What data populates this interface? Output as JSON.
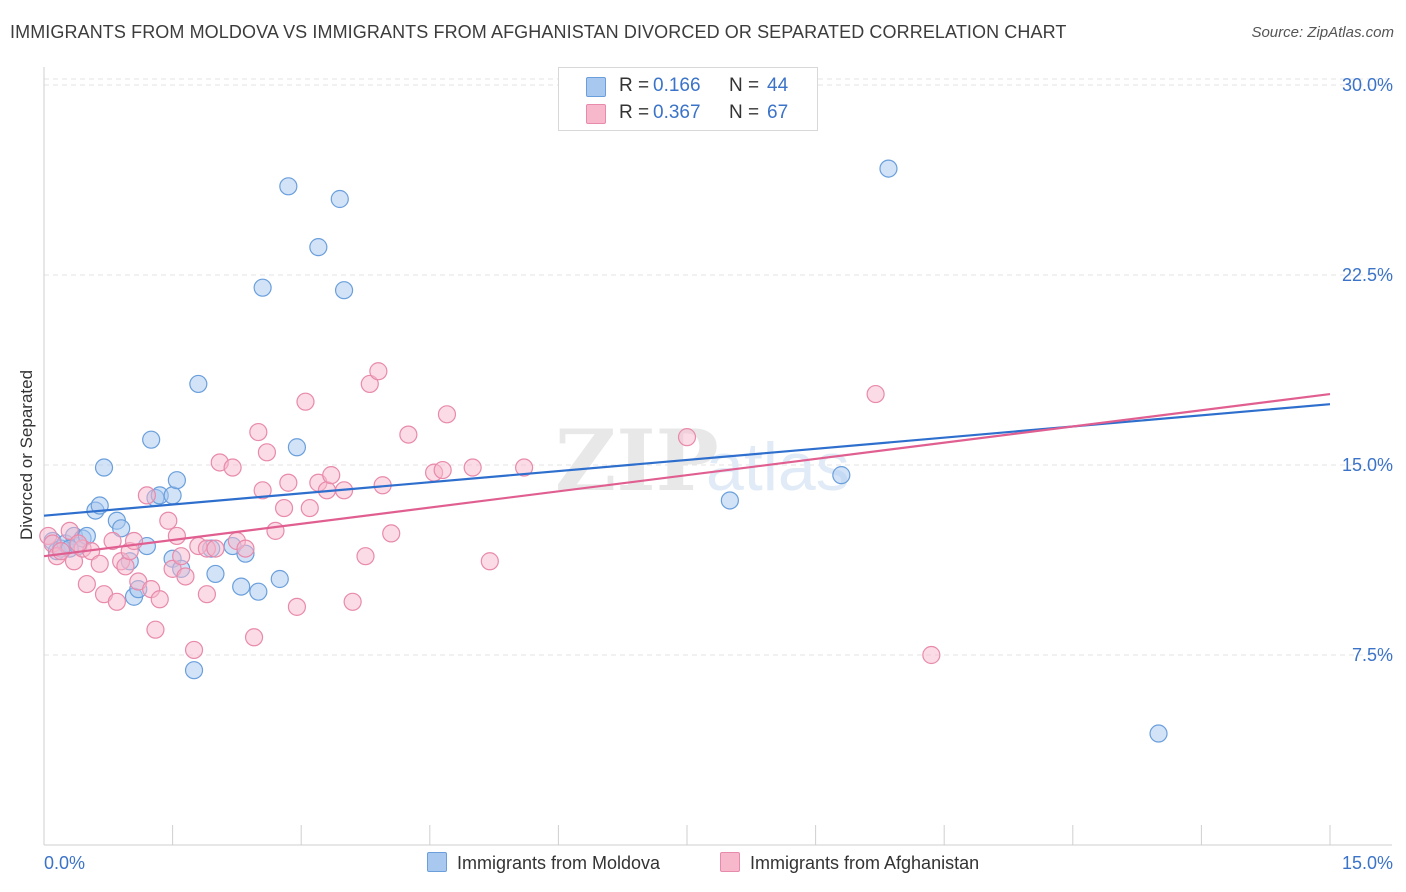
{
  "title": "IMMIGRANTS FROM MOLDOVA VS IMMIGRANTS FROM AFGHANISTAN DIVORCED OR SEPARATED CORRELATION CHART",
  "source": "Source: ZipAtlas.com",
  "watermark": {
    "part1": "ZIP",
    "part2": "atlas"
  },
  "stats": [
    {
      "r_label": "R =",
      "r_value": "0.166",
      "n_label": "N =",
      "n_value": "44"
    },
    {
      "r_label": "R =",
      "r_value": "0.367",
      "n_label": "N =",
      "n_value": "67"
    }
  ],
  "colors": {
    "blue_fill": "#a8c8f0",
    "blue_stroke": "#6a9fdc",
    "blue_line": "#2e6fce",
    "pink_fill": "#f7b8cc",
    "pink_stroke": "#e88aab",
    "pink_line": "#e05f90",
    "tick_label": "#3b73c8",
    "grid": "#e3e3e3"
  },
  "chart_data": {
    "type": "scatter",
    "xlabel": "",
    "ylabel": "Divorced or Separated",
    "xlim": [
      0,
      15
    ],
    "ylim": [
      0,
      31.5
    ],
    "x_tick_labels": [
      "0.0%",
      "15.0%"
    ],
    "y_ticks": [
      7.5,
      15.0,
      22.5,
      30.0
    ],
    "y_tick_labels": [
      "7.5%",
      "15.0%",
      "22.5%",
      "30.0%"
    ],
    "grid": "horizontal dashed",
    "legend_position": "bottom-center",
    "series": [
      {
        "name": "Immigrants from Moldova",
        "color": "#a8c8f0",
        "trend": [
          [
            0,
            13.0
          ],
          [
            15,
            17.4
          ]
        ],
        "points": [
          [
            0.1,
            12.0
          ],
          [
            0.15,
            11.6
          ],
          [
            0.2,
            11.7
          ],
          [
            0.25,
            11.9
          ],
          [
            0.35,
            12.2
          ],
          [
            0.4,
            11.8
          ],
          [
            0.45,
            12.1
          ],
          [
            0.5,
            12.2
          ],
          [
            0.6,
            13.2
          ],
          [
            0.65,
            13.4
          ],
          [
            0.7,
            14.9
          ],
          [
            0.85,
            12.8
          ],
          [
            0.9,
            12.5
          ],
          [
            1.0,
            11.2
          ],
          [
            1.05,
            9.8
          ],
          [
            1.1,
            10.1
          ],
          [
            1.2,
            11.8
          ],
          [
            1.25,
            16.0
          ],
          [
            1.3,
            13.7
          ],
          [
            1.35,
            13.8
          ],
          [
            1.5,
            11.3
          ],
          [
            1.5,
            13.8
          ],
          [
            1.55,
            14.4
          ],
          [
            1.6,
            10.9
          ],
          [
            1.75,
            6.9
          ],
          [
            1.8,
            18.2
          ],
          [
            1.95,
            11.7
          ],
          [
            2.0,
            10.7
          ],
          [
            2.2,
            11.8
          ],
          [
            2.3,
            10.2
          ],
          [
            2.35,
            11.5
          ],
          [
            2.5,
            10.0
          ],
          [
            2.55,
            22.0
          ],
          [
            2.75,
            10.5
          ],
          [
            2.85,
            26.0
          ],
          [
            2.95,
            15.7
          ],
          [
            3.2,
            23.6
          ],
          [
            3.45,
            25.5
          ],
          [
            3.5,
            21.9
          ],
          [
            8.0,
            13.6
          ],
          [
            9.3,
            14.6
          ],
          [
            9.85,
            26.7
          ],
          [
            13.0,
            4.4
          ],
          [
            0.3,
            11.7
          ]
        ]
      },
      {
        "name": "Immigrants from Afghanistan",
        "color": "#f7b8cc",
        "trend": [
          [
            0,
            11.4
          ],
          [
            15,
            17.8
          ]
        ],
        "points": [
          [
            0.05,
            12.2
          ],
          [
            0.1,
            11.9
          ],
          [
            0.15,
            11.4
          ],
          [
            0.2,
            11.6
          ],
          [
            0.3,
            12.4
          ],
          [
            0.35,
            11.2
          ],
          [
            0.45,
            11.7
          ],
          [
            0.5,
            10.3
          ],
          [
            0.55,
            11.6
          ],
          [
            0.65,
            11.1
          ],
          [
            0.7,
            9.9
          ],
          [
            0.8,
            12.0
          ],
          [
            0.85,
            9.6
          ],
          [
            0.9,
            11.2
          ],
          [
            0.95,
            11.0
          ],
          [
            1.0,
            11.6
          ],
          [
            1.05,
            12.0
          ],
          [
            1.1,
            10.4
          ],
          [
            1.2,
            13.8
          ],
          [
            1.25,
            10.1
          ],
          [
            1.3,
            8.5
          ],
          [
            1.35,
            9.7
          ],
          [
            1.45,
            12.8
          ],
          [
            1.5,
            10.9
          ],
          [
            1.6,
            11.4
          ],
          [
            1.65,
            10.6
          ],
          [
            1.75,
            7.7
          ],
          [
            1.8,
            11.8
          ],
          [
            1.9,
            11.7
          ],
          [
            2.0,
            11.7
          ],
          [
            2.05,
            15.1
          ],
          [
            2.2,
            14.9
          ],
          [
            2.25,
            12.0
          ],
          [
            2.35,
            11.7
          ],
          [
            2.45,
            8.2
          ],
          [
            2.5,
            16.3
          ],
          [
            2.55,
            14.0
          ],
          [
            2.6,
            15.5
          ],
          [
            2.7,
            12.4
          ],
          [
            2.8,
            13.3
          ],
          [
            2.85,
            14.3
          ],
          [
            2.95,
            9.4
          ],
          [
            3.05,
            17.5
          ],
          [
            3.1,
            13.3
          ],
          [
            3.2,
            14.3
          ],
          [
            3.3,
            14.0
          ],
          [
            3.35,
            14.6
          ],
          [
            3.5,
            14.0
          ],
          [
            3.6,
            9.6
          ],
          [
            3.75,
            11.4
          ],
          [
            3.8,
            18.2
          ],
          [
            3.9,
            18.7
          ],
          [
            3.95,
            14.2
          ],
          [
            4.05,
            12.3
          ],
          [
            4.25,
            16.2
          ],
          [
            4.55,
            14.7
          ],
          [
            4.65,
            14.8
          ],
          [
            4.7,
            17.0
          ],
          [
            5.0,
            14.9
          ],
          [
            5.2,
            11.2
          ],
          [
            5.6,
            14.9
          ],
          [
            7.5,
            16.1
          ],
          [
            9.7,
            17.8
          ],
          [
            10.35,
            7.5
          ],
          [
            0.4,
            11.9
          ],
          [
            1.55,
            12.2
          ],
          [
            1.9,
            9.9
          ]
        ]
      }
    ]
  }
}
